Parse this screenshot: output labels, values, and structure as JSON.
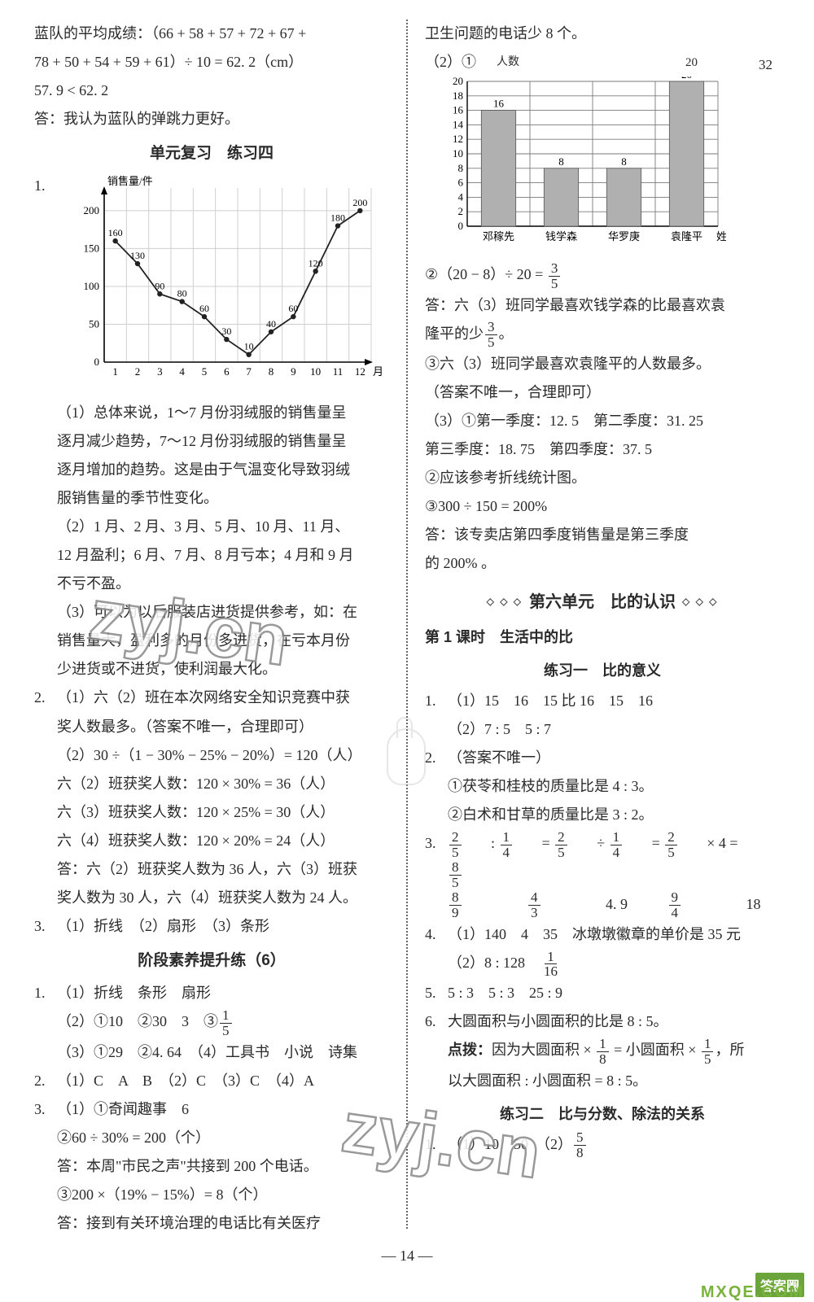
{
  "left": {
    "intro_l1": "蓝队的平均成绩：（66 + 58 + 57 + 72 + 67 +",
    "intro_l2": "78 + 50 + 54 + 59 + 61）÷ 10 = 62. 2（cm）",
    "intro_l3": "57. 9 < 62. 2",
    "intro_l4": "答：我认为蓝队的弹跳力更好。",
    "title1": "单元复习　练习四",
    "chart": {
      "type": "line",
      "x_label": "月份",
      "y_label": "销售量/件",
      "x_ticks": [
        1,
        2,
        3,
        4,
        5,
        6,
        7,
        8,
        9,
        10,
        11,
        12
      ],
      "y_ticks": [
        0,
        50,
        100,
        150,
        200
      ],
      "ylim": [
        0,
        230
      ],
      "values": [
        160,
        130,
        90,
        80,
        60,
        30,
        10,
        40,
        60,
        120,
        180,
        200
      ],
      "point_labels": [
        "160",
        "130",
        "90",
        "80",
        "60",
        "30",
        "10",
        "40",
        "60",
        "120",
        "180",
        "200"
      ],
      "line_color": "#222",
      "point_fill": "#222",
      "grid_color": "#cfcfcf",
      "background": "#ffffff",
      "axis_color": "#000",
      "font_size": 13
    },
    "p1_1": "（1）总体来说，1～7 月份羽绒服的销售量呈",
    "p1_2": "逐月减少趋势，7～12 月份羽绒服的销售量呈",
    "p1_3": "逐月增加的趋势。这是由于气温变化导致羽绒",
    "p1_4": "服销售量的季节性变化。",
    "p2_1": "（2）1 月、2 月、3 月、5 月、10 月、11 月、",
    "p2_2": "12 月盈利；6 月、7 月、8 月亏本；4 月和 9 月",
    "p2_3": "不亏不盈。",
    "p3_1": "（3）可以为以后服装店进货提供参考，如：在",
    "p3_2": "销售量大，盈利多的月份多进货，在亏本月份",
    "p3_3": "少进货或不进货，使利润最大化。",
    "q2_1": "（1）六（2）班在本次网络安全知识竞赛中获",
    "q2_2": "奖人数最多。（答案不唯一，合理即可）",
    "q2_3": "（2）30 ÷（1 − 30% − 25% − 20%）= 120（人）",
    "q2_4": "六（2）班获奖人数：120 × 30% = 36（人）",
    "q2_5": "六（3）班获奖人数：120 × 25% = 30（人）",
    "q2_6": "六（4）班获奖人数：120 × 20% = 24（人）",
    "q2_7": "答：六（2）班获奖人数为 36 人，六（3）班获",
    "q2_8": "奖人数为 30 人，六（4）班获奖人数为 24 人。",
    "q3": "（1）折线　（2）扇形　（3）条形",
    "title2": "阶段素养提升练（6）",
    "s1_1": "（1）折线　条形　扇形",
    "s1_2a": "（2）①10　②30　3　③",
    "s1_3": "（3）①29　②4. 64　（4）工具书　小说　诗集",
    "s2": "（1）C　A　B　（2）C　（3）C　（4）A",
    "s3_1": "（1）①奇闻趣事　6",
    "s3_2": "②60 ÷ 30% = 200（个）",
    "s3_3": "答：本周\"市民之声\"共接到 200 个电话。",
    "s3_4": "③200 ×（19% − 15%）= 8（个）",
    "s3_5": "答：接到有关环境治理的电话比有关医疗"
  },
  "right": {
    "top": "卫生问题的电话少 8 个。",
    "sub21": "（2）①",
    "axis_y": "人数",
    "n20": "20",
    "n32": "32",
    "barchart": {
      "type": "bar",
      "x_label": "姓名",
      "y_label": "人数",
      "categories": [
        "邓稼先",
        "钱学森",
        "华罗庚",
        "袁隆平"
      ],
      "values": [
        16,
        8,
        8,
        20
      ],
      "value_labels": [
        "16",
        "8",
        "8",
        "20"
      ],
      "y_ticks": [
        0,
        2,
        4,
        6,
        8,
        10,
        12,
        14,
        16,
        18,
        20
      ],
      "ylim": [
        0,
        20
      ],
      "bar_fill": "#b0b0b0",
      "grid_color": "#7a7a7a",
      "axis_color": "#000",
      "background": "#ffffff",
      "font_size": 13,
      "bar_width": 0.55
    },
    "eq2_pre": "②（20 − 8）÷ 20 = ",
    "ans1a": "答：六（3）班同学最喜欢钱学森的比最喜欢袁",
    "ans1b_pre": "隆平的少",
    "ans1b_post": "。",
    "line3a": "③六（3）班同学最喜欢袁隆平的人数最多。",
    "line3b": "（答案不唯一，合理即可）",
    "line3c": "（3）①第一季度：12. 5　第二季度：31. 25",
    "line3d": "第三季度：18. 75　第四季度：37. 5",
    "line3e": "②应该参考折线统计图。",
    "line3f": "③300 ÷ 150 = 200%",
    "line3g": "答：该专卖店第四季度销售量是第三季度",
    "line3h": "的 200% 。",
    "unit_title": "第六单元　比的认识",
    "sec1_t": "第 1 课时　生活中的比",
    "sec1_sub": "练习一　比的意义",
    "r1_1": "（1）15　16　15 比 16　15　16",
    "r1_2": "（2）7 : 5　5 : 7",
    "r2_0": "（答案不唯一）",
    "r2_1": "①茯苓和桂枝的质量比是 4 : 3。",
    "r2_2": "②白术和甘草的质量比是 3 : 2。",
    "r4_1": "（1）140　4　35　冰墩墩徽章的单价是 35 元",
    "r4_2a": "（2）8 : 128　",
    "r5": "5 : 3　5 : 3　25 : 9",
    "r6_1": "大圆面积与小圆面积的比是 8 : 5。",
    "r6_2a": "点拨：",
    "r6_2b": "因为大圆面积 × ",
    "r6_2c": " = 小圆面积 × ",
    "r6_2d": "，所",
    "r6_3": "以大圆面积 : 小圆面积 = 8 : 5。",
    "sec2_sub": "练习二　比与分数、除法的关系",
    "p2_r1a": "（1）10　50　（2）"
  },
  "page_number": "— 14 —",
  "footer_box": "答案圈",
  "footer_url": "MXQE.COM",
  "watermark": "zyj.cn"
}
